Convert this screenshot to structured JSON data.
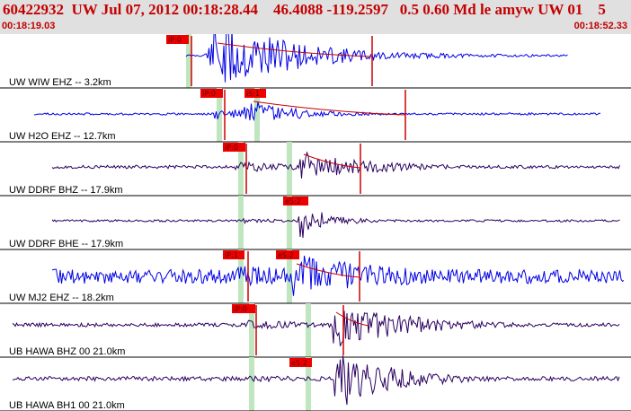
{
  "header": {
    "title": "60422932  UW Jul 07, 2012 00:18:28.44    46.4088 -119.2597   0.5 0.60 Md le amyw UW 01    5",
    "start_time": "00:18:19.03",
    "end_time": "00:18:52.33"
  },
  "colors": {
    "header_bg": "#e0e0e0",
    "header_text": "#c40000",
    "trace_blue": "#0000e6",
    "trace_purple": "#2a0060",
    "pick_box": "#ee0000",
    "coda_line": "#cc0000",
    "window": "#bfe6bf"
  },
  "traces": [
    {
      "label": "UW WIW EHZ -- 3.2km",
      "color": "blue",
      "seed": 11,
      "picks": [
        {
          "label": "iP:0"
        }
      ],
      "signal": {
        "start": 207,
        "end": 632,
        "pAmp": 18,
        "sAmp": 44,
        "pHi": 227,
        "sHi": 242,
        "decay": 0.012,
        "noise": 1
      }
    },
    {
      "label": "UW H2O EHZ -- 12.7km",
      "color": "blue",
      "seed": 23,
      "picks": [
        {
          "label": "iP:0"
        },
        {
          "label": "iS:1"
        }
      ],
      "signal": {
        "start": 38,
        "end": 668,
        "pAmp": 7,
        "sAmp": 14,
        "pHi": 238,
        "sHi": 275,
        "decay": 0.016,
        "noise": 1.2
      }
    },
    {
      "label": "UW DDRF BHZ -- 17.9km",
      "color": "purple",
      "seed": 37,
      "picks": [
        {
          "label": "iP:0"
        }
      ],
      "signal": {
        "start": 58,
        "end": 690,
        "pAmp": 6,
        "sAmp": 16,
        "pHi": 262,
        "sHi": 338,
        "decay": 0.012,
        "noise": 1.8
      }
    },
    {
      "label": "UW DDRF BHE -- 17.9km",
      "color": "purple",
      "seed": 53,
      "picks": [
        {
          "label": "eS:2"
        }
      ],
      "signal": {
        "start": 58,
        "end": 690,
        "pAmp": 3,
        "sAmp": 20,
        "pHi": 270,
        "sHi": 334,
        "decay": 0.03,
        "noise": 1.2
      }
    },
    {
      "label": "UW MJ2 EHZ -- 18.2km",
      "color": "blue",
      "seed": 71,
      "picks": [
        {
          "label": "iP:1"
        },
        {
          "label": "eS:2"
        }
      ],
      "signal": {
        "start": 58,
        "end": 694,
        "pAmp": 12,
        "sAmp": 26,
        "pHi": 262,
        "sHi": 330,
        "decay": 0.008,
        "noise": 8
      }
    },
    {
      "label": "UB HAWA BHZ 00 21.0km",
      "color": "purple",
      "seed": 89,
      "picks": [
        {
          "label": "iP:0"
        }
      ],
      "signal": {
        "start": 14,
        "end": 690,
        "pAmp": 5,
        "sAmp": 26,
        "pHi": 276,
        "sHi": 374,
        "decay": 0.012,
        "noise": 2
      }
    },
    {
      "label": "UB HAWA BH1 00 21.0km",
      "color": "purple",
      "seed": 97,
      "picks": [
        {
          "label": "eS:2"
        }
      ],
      "signal": {
        "start": 14,
        "end": 690,
        "pAmp": 4,
        "sAmp": 30,
        "pHi": 278,
        "sHi": 376,
        "decay": 0.014,
        "noise": 2.4
      }
    }
  ]
}
